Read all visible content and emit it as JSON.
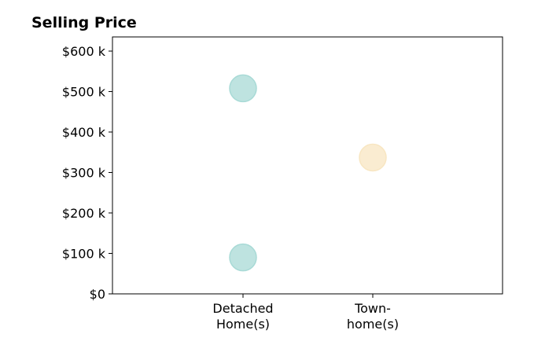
{
  "chart_data": {
    "type": "scatter",
    "title": "Selling Price",
    "xlabel": "",
    "ylabel": "",
    "categories": [
      [
        "Detached",
        "Home(s)"
      ],
      [
        "Town-",
        "home(s)"
      ]
    ],
    "y_ticks": [
      0,
      100000,
      200000,
      300000,
      400000,
      500000,
      600000
    ],
    "y_tick_labels": [
      "$0",
      "$100 k",
      "$200 k",
      "$300 k",
      "$400 k",
      "$500 k",
      "$600 k"
    ],
    "ylim": [
      0,
      635000
    ],
    "grid": false,
    "points": [
      {
        "category": 0,
        "y": 508000,
        "color": "#a8dad6"
      },
      {
        "category": 0,
        "y": 90000,
        "color": "#a8dad6"
      },
      {
        "category": 1,
        "y": 337000,
        "color": "#f8e6c2"
      }
    ],
    "colors": {
      "axis": "#000000"
    }
  }
}
